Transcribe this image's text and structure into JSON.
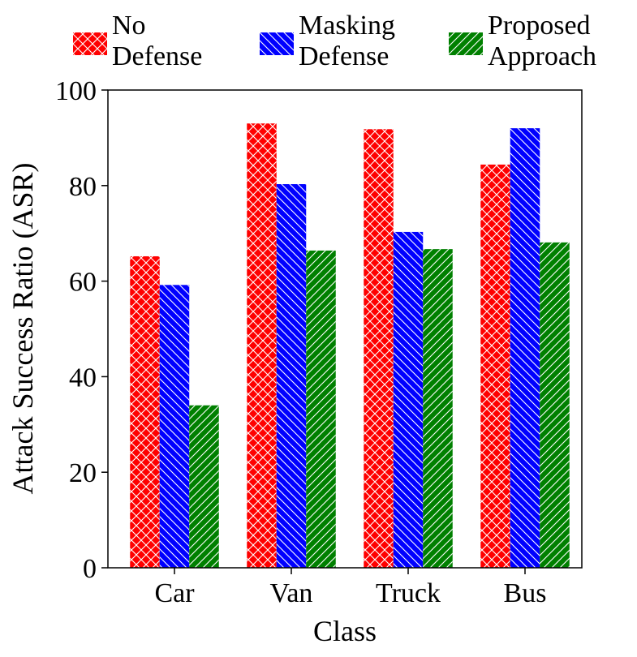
{
  "chart_data": {
    "type": "bar",
    "title": "",
    "xlabel": "Class",
    "ylabel": "Attack Success Ratio (ASR)",
    "categories": [
      "Car",
      "Van",
      "Truck",
      "Bus"
    ],
    "ylim": [
      0,
      100
    ],
    "yticks": [
      0,
      20,
      40,
      60,
      80,
      100
    ],
    "grid": false,
    "legend_position": "top",
    "series": [
      {
        "name": "No Defense",
        "legend_lines": [
          "No",
          "Defense"
        ],
        "color": "#ff0000",
        "hatch": "crosshatch",
        "values": [
          65.2,
          93.0,
          91.8,
          84.4
        ]
      },
      {
        "name": "Masking Defense",
        "legend_lines": [
          "Masking",
          "Defense"
        ],
        "color": "#0000ff",
        "hatch": "diagonal-back",
        "values": [
          59.2,
          80.3,
          70.3,
          92.0
        ]
      },
      {
        "name": "Proposed Approach",
        "legend_lines": [
          "Proposed",
          "Approach"
        ],
        "color": "#008000",
        "hatch": "diagonal-forward",
        "values": [
          34.0,
          66.4,
          66.7,
          68.1
        ]
      }
    ]
  }
}
